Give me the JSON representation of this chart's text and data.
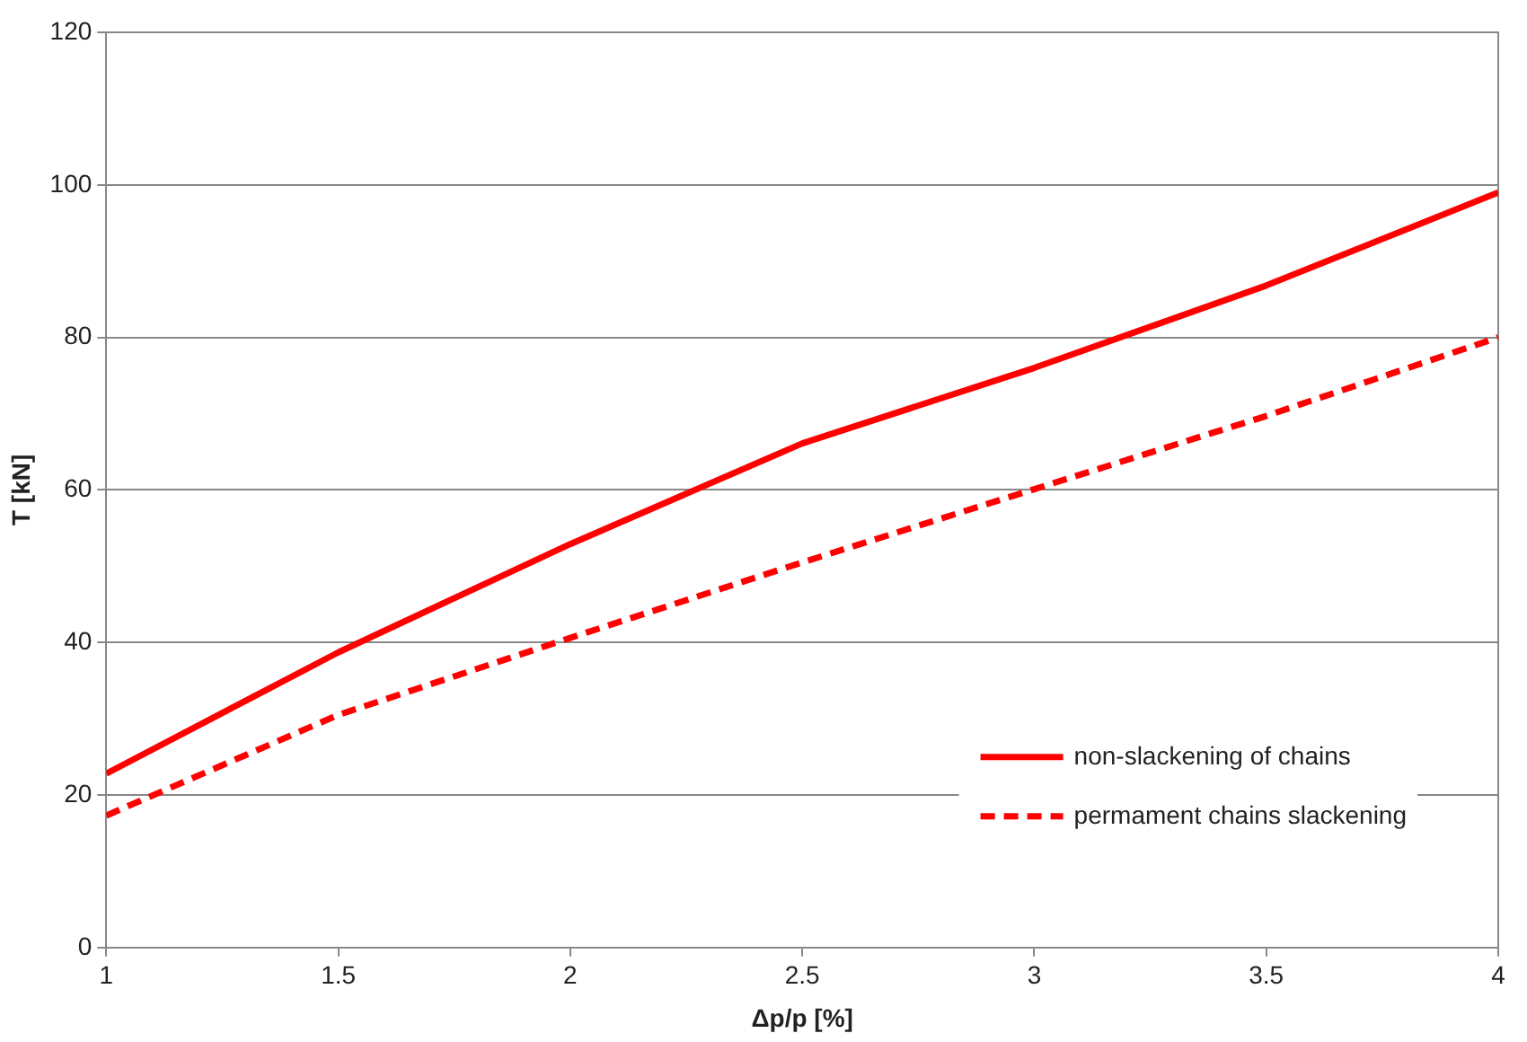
{
  "chart_data": {
    "type": "line",
    "xlabel": "Δp/p [%]",
    "ylabel": "T [kN]",
    "x": [
      1,
      1.5,
      2,
      2.5,
      3,
      3.5,
      4
    ],
    "series": [
      {
        "name": "non-slackening of chains",
        "color": "#ff0000",
        "line_style": "solid",
        "values": [
          22.8,
          38.7,
          52.9,
          66.1,
          76,
          86.8,
          99
        ]
      },
      {
        "name": "permament chains slackening",
        "color": "#ff0000",
        "line_style": "dashed",
        "values": [
          17.3,
          30.5,
          40.6,
          50.5,
          60.1,
          69.7,
          80
        ]
      }
    ],
    "xlim": [
      1,
      4
    ],
    "xticks": [
      1,
      1.5,
      2,
      2.5,
      3,
      3.5,
      4
    ],
    "ylim": [
      0,
      120
    ],
    "yticks": [
      0,
      20,
      40,
      60,
      80,
      100,
      120
    ],
    "grid": "y",
    "legend": "bottom right",
    "marker": "none"
  }
}
